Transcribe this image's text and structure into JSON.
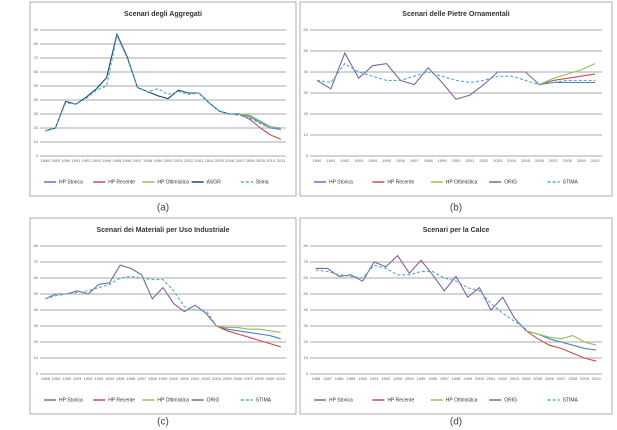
{
  "chart_data": [
    {
      "type": "line",
      "title": "Scenari degli Aggregati",
      "caption": "(a)",
      "legend": "bottom",
      "grid": true,
      "categories": [
        "1988",
        "1989",
        "1990",
        "1991",
        "1992",
        "1993",
        "1994",
        "1995",
        "1996",
        "1997",
        "1998",
        "1999",
        "2000",
        "2001",
        "2002",
        "2003",
        "2004",
        "2005",
        "2006",
        "2007",
        "2008",
        "2009",
        "2010",
        "2011"
      ],
      "ylim": [
        0,
        90
      ],
      "yticks": [
        0,
        10,
        20,
        30,
        40,
        50,
        60,
        70,
        80,
        90
      ],
      "series": [
        {
          "name": "HP Storica",
          "color": "#4f81bd",
          "values": [
            null,
            null,
            null,
            null,
            null,
            null,
            null,
            null,
            null,
            null,
            null,
            null,
            null,
            null,
            null,
            null,
            null,
            null,
            null,
            30,
            28,
            24,
            20,
            19
          ]
        },
        {
          "name": "HP Recente",
          "color": "#c0504d",
          "values": [
            null,
            null,
            null,
            null,
            null,
            null,
            null,
            null,
            null,
            null,
            null,
            null,
            null,
            null,
            null,
            null,
            null,
            null,
            null,
            30,
            26,
            20,
            15,
            12
          ]
        },
        {
          "name": "HP Ottimistica",
          "color": "#9bbb59",
          "values": [
            null,
            null,
            null,
            null,
            null,
            null,
            null,
            null,
            null,
            null,
            null,
            null,
            null,
            null,
            null,
            null,
            null,
            null,
            null,
            30,
            29,
            25,
            21,
            20
          ]
        },
        {
          "name": "ASGR",
          "color": "#1f497d",
          "values": [
            18,
            20,
            39,
            37,
            42,
            48,
            56,
            87,
            71,
            49,
            46,
            43,
            41,
            47,
            45,
            45,
            38,
            32,
            30,
            30,
            null,
            null,
            null,
            null
          ]
        },
        {
          "name": "Stima",
          "color": "#4bacc6",
          "dashed": true,
          "values": [
            18,
            20,
            38,
            37,
            41,
            47,
            50,
            86,
            70,
            49,
            46,
            48,
            44,
            46,
            44,
            45,
            38,
            32,
            30,
            29,
            27,
            23,
            20,
            20
          ]
        }
      ]
    },
    {
      "type": "line",
      "title": "Scenari delle Pietre Ornamentali",
      "caption": "(b)",
      "legend": "bottom",
      "grid": true,
      "categories": [
        "1990",
        "1991",
        "1992",
        "1993",
        "1994",
        "1995",
        "1996",
        "1997",
        "1998",
        "1999",
        "2000",
        "2001",
        "2002",
        "2003",
        "2004",
        "2005",
        "2006",
        "2007",
        "2008",
        "2009",
        "2010"
      ],
      "ylim": [
        0,
        60
      ],
      "yticks": [
        0,
        10,
        20,
        30,
        40,
        50,
        60
      ],
      "series": [
        {
          "name": "HP Storica",
          "color": "#4f81bd",
          "values": [
            null,
            null,
            null,
            null,
            null,
            null,
            null,
            null,
            null,
            null,
            null,
            null,
            null,
            null,
            null,
            null,
            34,
            35,
            35,
            35,
            35
          ]
        },
        {
          "name": "HP Recente",
          "color": "#c0504d",
          "values": [
            null,
            null,
            null,
            null,
            null,
            null,
            null,
            null,
            null,
            null,
            null,
            null,
            null,
            null,
            null,
            null,
            34,
            36,
            37,
            38,
            39
          ]
        },
        {
          "name": "HP Ottimistica",
          "color": "#9bbb59",
          "values": [
            null,
            null,
            null,
            null,
            null,
            null,
            null,
            null,
            null,
            null,
            null,
            null,
            null,
            null,
            null,
            null,
            34,
            37,
            39,
            41,
            44
          ]
        },
        {
          "name": "ORIG",
          "color": "#8064a2",
          "values": [
            36,
            32,
            49,
            37,
            43,
            44,
            36,
            34,
            42,
            35,
            27,
            29,
            34,
            40,
            40,
            40,
            34,
            null,
            null,
            null,
            null
          ]
        },
        {
          "name": "STIMA",
          "color": "#4bacc6",
          "dashed": true,
          "values": [
            36,
            35,
            44,
            40,
            38,
            36,
            36,
            38,
            40,
            38,
            36,
            35,
            36,
            38,
            38,
            36,
            34,
            35,
            36,
            36,
            36
          ]
        }
      ]
    },
    {
      "type": "line",
      "title": "Scenari dei Materiali per Uso Industriale",
      "caption": "(c)",
      "legend": "bottom",
      "grid": true,
      "categories": [
        "1988",
        "1989",
        "1990",
        "1991",
        "1992",
        "1993",
        "1994",
        "1995",
        "1996",
        "1997",
        "1998",
        "1999",
        "2000",
        "2001",
        "2002",
        "2003",
        "2004",
        "2005",
        "2006",
        "2007",
        "2008",
        "2009",
        "2010"
      ],
      "ylim": [
        0,
        80
      ],
      "yticks": [
        0,
        10,
        20,
        30,
        40,
        50,
        60,
        70,
        80
      ],
      "series": [
        {
          "name": "HP Storica",
          "color": "#4f81bd",
          "values": [
            null,
            null,
            null,
            null,
            null,
            null,
            null,
            null,
            null,
            null,
            null,
            null,
            null,
            null,
            null,
            null,
            30,
            28,
            27,
            26,
            25,
            24,
            22
          ]
        },
        {
          "name": "HP Recente",
          "color": "#c0504d",
          "values": [
            null,
            null,
            null,
            null,
            null,
            null,
            null,
            null,
            null,
            null,
            null,
            null,
            null,
            null,
            null,
            null,
            30,
            27,
            25,
            23,
            21,
            19,
            17
          ]
        },
        {
          "name": "HP Ottimistica",
          "color": "#9bbb59",
          "values": [
            null,
            null,
            null,
            null,
            null,
            null,
            null,
            null,
            null,
            null,
            null,
            null,
            null,
            null,
            null,
            null,
            30,
            29,
            29,
            28,
            28,
            27,
            26
          ]
        },
        {
          "name": "ORIG",
          "color": "#8064a2",
          "values": [
            47,
            50,
            50,
            52,
            50,
            56,
            57,
            68,
            66,
            62,
            47,
            54,
            44,
            39,
            43,
            38,
            30,
            null,
            null,
            null,
            null,
            null,
            null
          ]
        },
        {
          "name": "STIMA",
          "color": "#4bacc6",
          "dashed": true,
          "values": [
            47,
            49,
            50,
            51,
            52,
            54,
            56,
            60,
            61,
            60,
            59,
            59,
            52,
            42,
            40,
            40,
            30,
            null,
            null,
            null,
            null,
            null,
            null
          ]
        }
      ]
    },
    {
      "type": "line",
      "title": "Scenari per la Calce",
      "caption": "(d)",
      "legend": "bottom",
      "grid": true,
      "categories": [
        "1986",
        "1987",
        "1988",
        "1989",
        "1990",
        "1991",
        "1992",
        "1993",
        "1994",
        "1995",
        "1996",
        "1997",
        "1998",
        "1999",
        "2000",
        "2001",
        "2002",
        "2003",
        "2004",
        "2005",
        "2006",
        "2007",
        "2008",
        "2009",
        "2010"
      ],
      "ylim": [
        0,
        80
      ],
      "yticks": [
        0,
        10,
        20,
        30,
        40,
        50,
        60,
        70,
        80
      ],
      "series": [
        {
          "name": "HP Storica",
          "color": "#4f81bd",
          "values": [
            null,
            null,
            null,
            null,
            null,
            null,
            null,
            null,
            null,
            null,
            null,
            null,
            null,
            null,
            null,
            null,
            null,
            null,
            27,
            25,
            22,
            20,
            18,
            16,
            15
          ]
        },
        {
          "name": "HP Recente",
          "color": "#c0504d",
          "values": [
            null,
            null,
            null,
            null,
            null,
            null,
            null,
            null,
            null,
            null,
            null,
            null,
            null,
            null,
            null,
            null,
            null,
            null,
            27,
            22,
            18,
            16,
            13,
            10,
            8
          ]
        },
        {
          "name": "HP Ottimistica",
          "color": "#9bbb59",
          "values": [
            null,
            null,
            null,
            null,
            null,
            null,
            null,
            null,
            null,
            null,
            null,
            null,
            null,
            null,
            null,
            null,
            null,
            null,
            27,
            25,
            23,
            22,
            24,
            20,
            18
          ]
        },
        {
          "name": "ORIG",
          "color": "#8064a2",
          "values": [
            66,
            66,
            61,
            62,
            58,
            70,
            67,
            74,
            63,
            71,
            62,
            52,
            61,
            48,
            54,
            40,
            48,
            35,
            27,
            null,
            null,
            null,
            null,
            null,
            null
          ]
        },
        {
          "name": "STIMA",
          "color": "#4bacc6",
          "dashed": true,
          "values": [
            65,
            64,
            62,
            61,
            60,
            68,
            66,
            62,
            62,
            64,
            64,
            60,
            58,
            54,
            52,
            44,
            38,
            33,
            28,
            null,
            null,
            null,
            null,
            null,
            null
          ]
        }
      ]
    }
  ]
}
